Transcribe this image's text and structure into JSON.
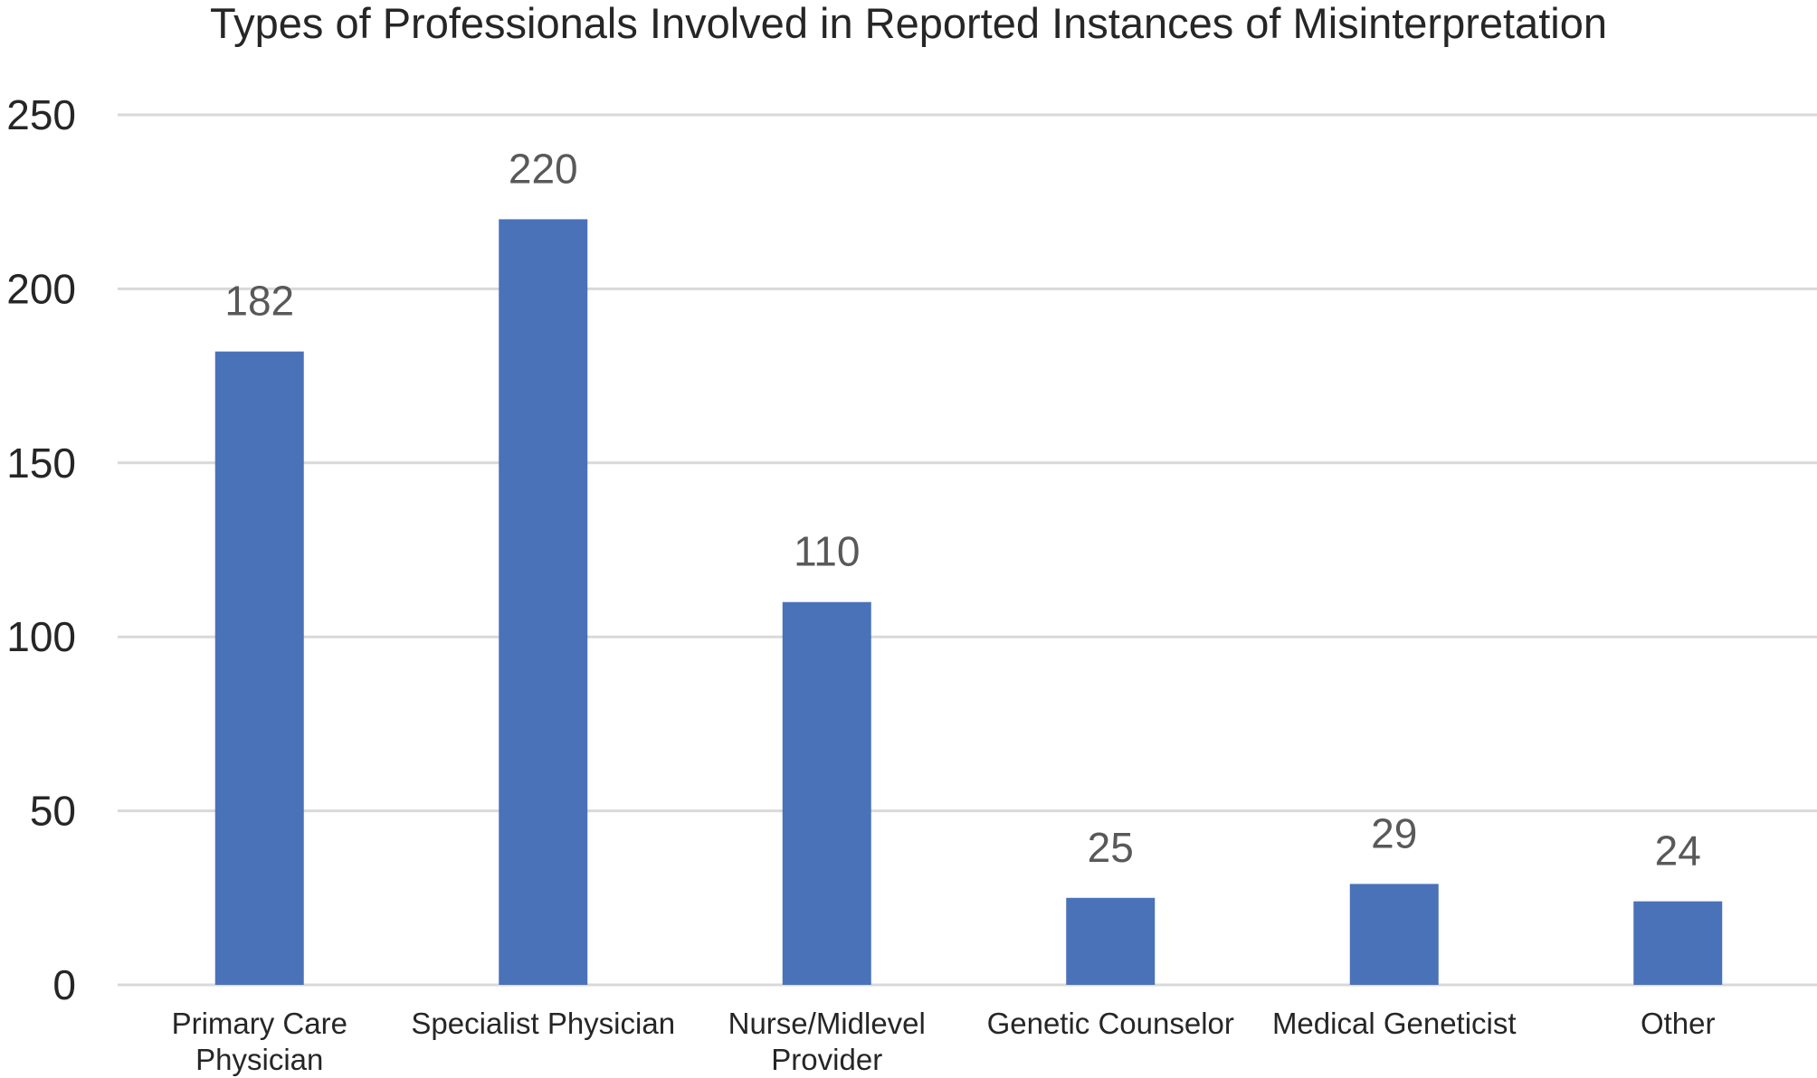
{
  "chart_data": {
    "type": "bar",
    "title": "Types of Professionals Involved in Reported Instances of Misinterpretation",
    "xlabel": "",
    "ylabel": "",
    "categories": [
      [
        "Primary Care",
        "Physician"
      ],
      [
        "Specialist Physician"
      ],
      [
        "Nurse/Midlevel",
        "Provider"
      ],
      [
        "Genetic Counselor"
      ],
      [
        "Medical Geneticist"
      ],
      [
        "Other"
      ]
    ],
    "values": [
      182,
      220,
      110,
      25,
      29,
      24
    ],
    "data_labels": [
      "182",
      "220",
      "110",
      "25",
      "29",
      "24"
    ],
    "ylim": [
      0,
      250
    ],
    "yticks": [
      0,
      50,
      100,
      150,
      200,
      250
    ],
    "grid": true,
    "legend": "none",
    "bar_color": "#4a72b8"
  }
}
